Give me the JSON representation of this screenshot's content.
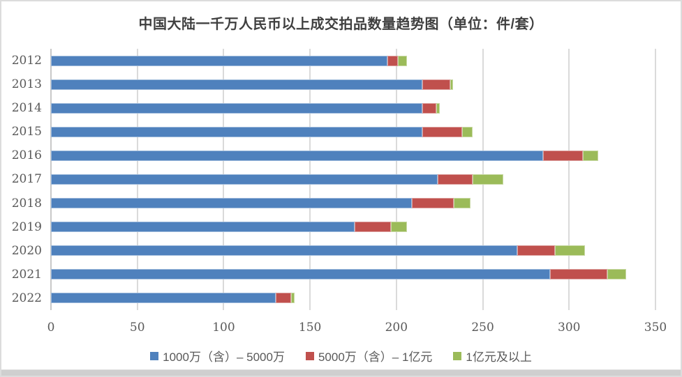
{
  "page": {
    "background": "#ffffff",
    "frame_border_color": "#dcdcdc",
    "bottom_edge_color": "#cfcfcf"
  },
  "chart_data": {
    "type": "bar",
    "orientation": "horizontal",
    "stacked": true,
    "title": "中国大陆一千万人民币以上成交拍品数量趋势图（单位：件/套）",
    "categories": [
      "2012",
      "2013",
      "2014",
      "2015",
      "2016",
      "2017",
      "2018",
      "2019",
      "2020",
      "2021",
      "2022"
    ],
    "series": [
      {
        "name": "1000万（含）– 5000万",
        "color": "#4f81bd",
        "values": [
          195,
          215,
          215,
          215,
          285,
          224,
          209,
          176,
          270,
          289,
          130
        ]
      },
      {
        "name": "5000万（含）– 1亿元",
        "color": "#c0504d",
        "values": [
          6,
          16,
          8,
          23,
          23,
          20,
          24,
          21,
          22,
          33,
          9
        ]
      },
      {
        "name": "1亿元及以上",
        "color": "#9bbb59",
        "values": [
          5,
          2,
          2,
          6,
          9,
          18,
          10,
          9,
          17,
          11,
          2
        ]
      }
    ],
    "totals": [
      206,
      233,
      225,
      244,
      317,
      262,
      243,
      206,
      309,
      333,
      141
    ],
    "xlabel": "",
    "ylabel": "",
    "xlim": [
      0,
      350
    ],
    "x_ticks": [
      0,
      50,
      100,
      150,
      200,
      250,
      300,
      350
    ],
    "grid": "vertical-only",
    "gridline_color": "#dadada",
    "axis_text_color": "#595959",
    "title_color": "#3f3f3f",
    "legend_position": "bottom"
  }
}
